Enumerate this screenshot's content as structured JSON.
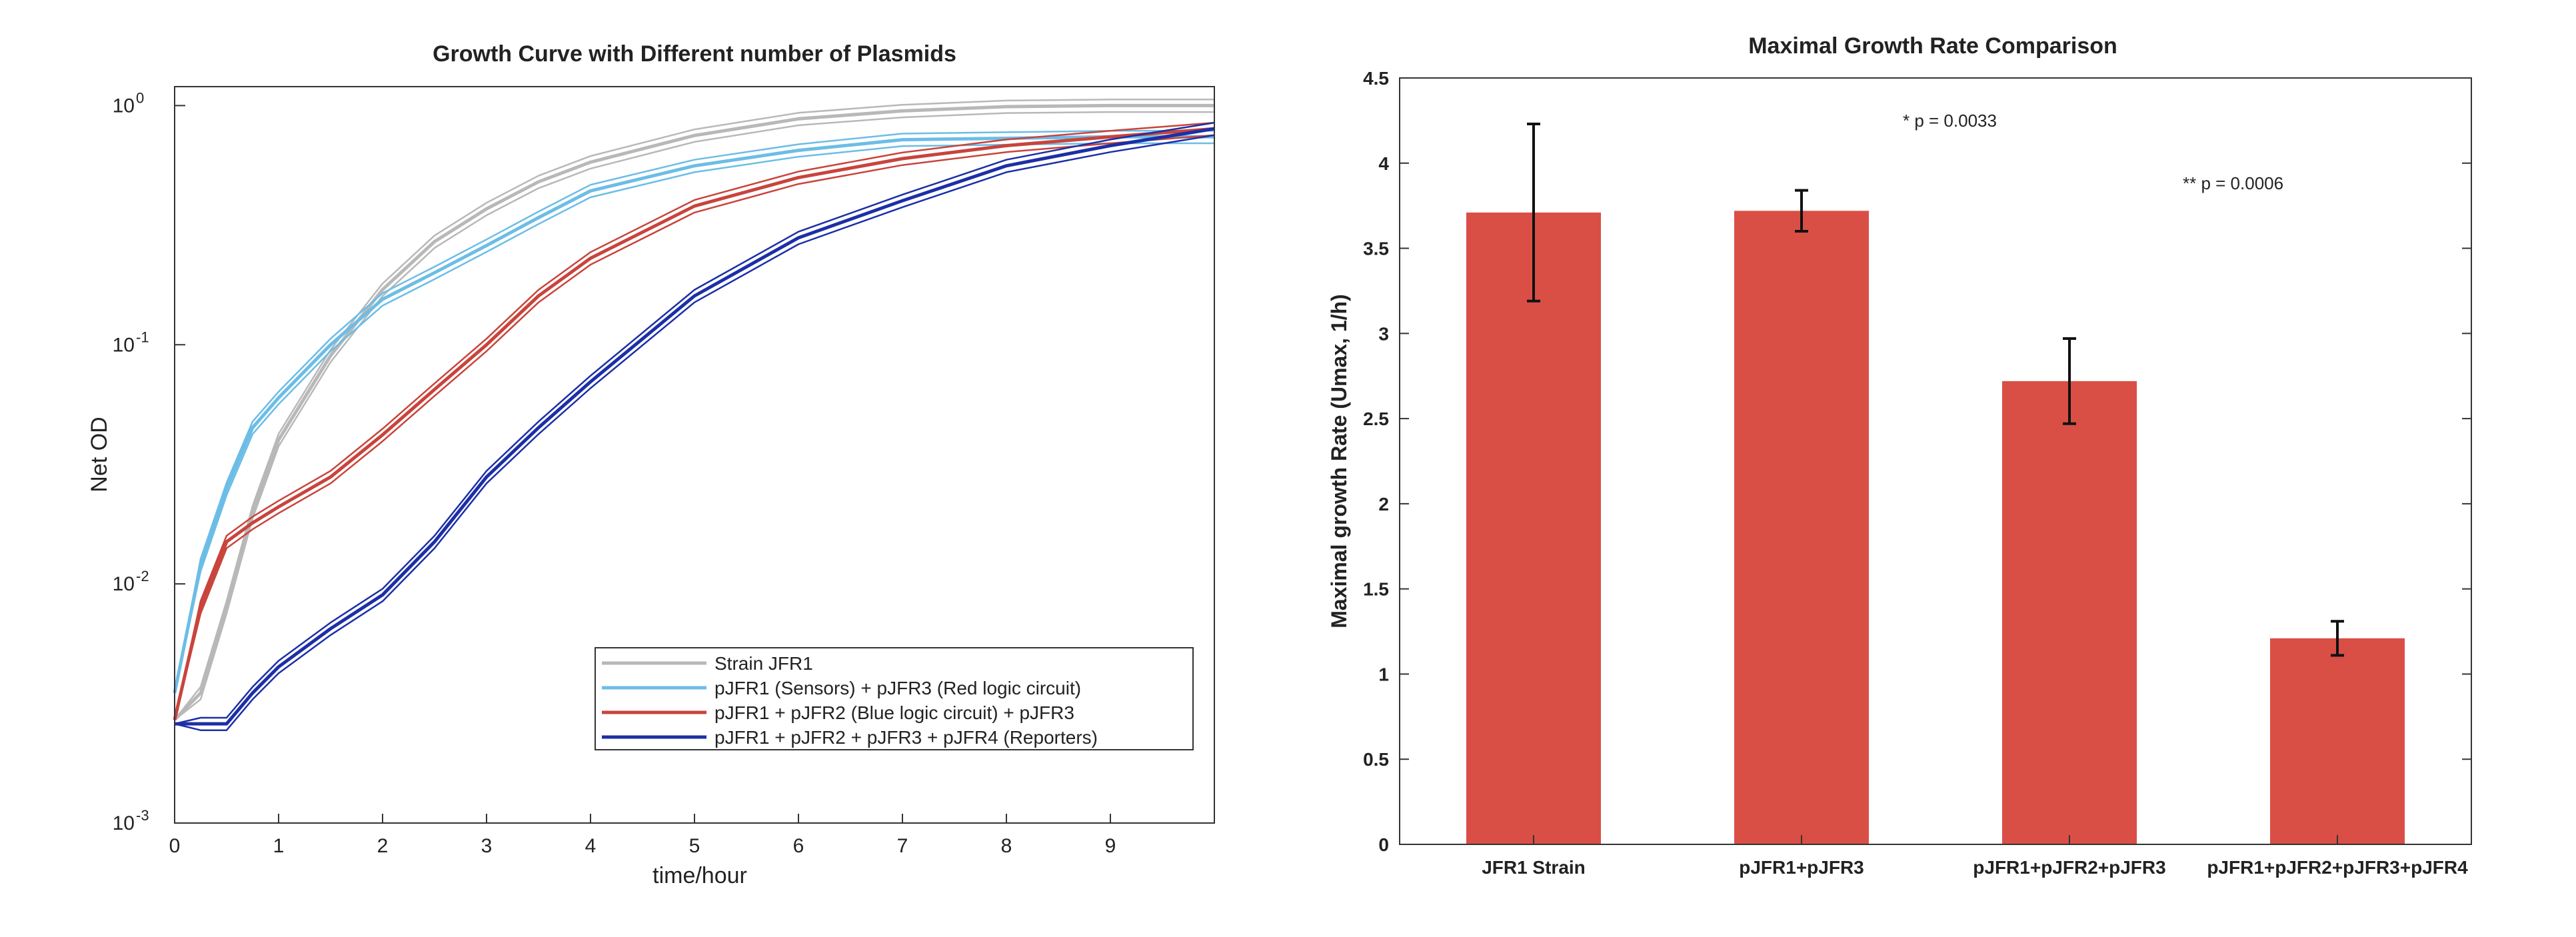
{
  "chart_data": [
    {
      "type": "line",
      "title": "Growth Curve with Different number of Plasmids",
      "xlabel": "time/hour",
      "ylabel": "Net OD",
      "yscale": "log",
      "xlim": [
        0,
        10
      ],
      "ylim": [
        0.001,
        1.2
      ],
      "x_ticks": [
        0,
        1,
        2,
        3,
        4,
        5,
        6,
        7,
        8,
        9
      ],
      "y_ticks": [
        {
          "value": 0.001,
          "base": "10",
          "exp": "-3"
        },
        {
          "value": 0.01,
          "base": "10",
          "exp": "-2"
        },
        {
          "value": 0.1,
          "base": "10",
          "exp": "-1"
        },
        {
          "value": 1,
          "base": "10",
          "exp": "0"
        }
      ],
      "legend_position": "lower-right",
      "x": [
        0,
        0.25,
        0.5,
        0.75,
        1,
        1.5,
        2,
        2.5,
        3,
        3.5,
        4,
        5,
        6,
        7,
        8,
        9,
        10
      ],
      "series": [
        {
          "name": "Strain JFR1",
          "color": "#b8b8b8",
          "values": [
            0.0027,
            0.0035,
            0.008,
            0.02,
            0.04,
            0.09,
            0.17,
            0.27,
            0.37,
            0.48,
            0.58,
            0.75,
            0.88,
            0.95,
            0.99,
            1.0,
            1.0
          ]
        },
        {
          "name": "pJFR1 (Sensors) + pJFR3 (Red logic circuit)",
          "color": "#6cbde6",
          "values": [
            0.0035,
            0.012,
            0.025,
            0.045,
            0.06,
            0.1,
            0.155,
            0.2,
            0.26,
            0.34,
            0.44,
            0.56,
            0.65,
            0.72,
            0.73,
            0.74,
            0.74
          ]
        },
        {
          "name": "pJFR1 + pJFR2 (Blue logic circuit) + pJFR3",
          "color": "#c8443c",
          "values": [
            0.0027,
            0.008,
            0.015,
            0.018,
            0.021,
            0.028,
            0.042,
            0.065,
            0.1,
            0.16,
            0.23,
            0.38,
            0.5,
            0.6,
            0.68,
            0.74,
            0.8
          ]
        },
        {
          "name": "pJFR1 + pJFR2 + pJFR3 + pJFR4 (Reporters)",
          "color": "#1c2fa6",
          "values": [
            0.0026,
            0.0026,
            0.0026,
            0.0035,
            0.0045,
            0.0065,
            0.009,
            0.015,
            0.028,
            0.045,
            0.07,
            0.16,
            0.28,
            0.4,
            0.56,
            0.68,
            0.8
          ]
        }
      ]
    },
    {
      "type": "bar",
      "title": "Maximal Growth Rate Comparison",
      "xlabel": "",
      "ylabel": "Maximal growth Rate (Umax, 1/h)",
      "ylim": [
        0,
        4.5
      ],
      "y_ticks": [
        "0",
        "0.5",
        "1",
        "1.5",
        "2",
        "2.5",
        "3",
        "3.5",
        "4",
        "4.5"
      ],
      "categories": [
        "JFR1 Strain",
        "pJFR1+pJFR3",
        "pJFR1+pJFR2+pJFR3",
        "pJFR1+pJFR2+pJFR3+pJFR4"
      ],
      "values": [
        3.71,
        3.72,
        2.72,
        1.21
      ],
      "errors": [
        0.52,
        0.12,
        0.25,
        0.1
      ],
      "bar_color": "#d94f45",
      "annotations": [
        "* p = 0.0033",
        "** p = 0.0006"
      ]
    }
  ]
}
